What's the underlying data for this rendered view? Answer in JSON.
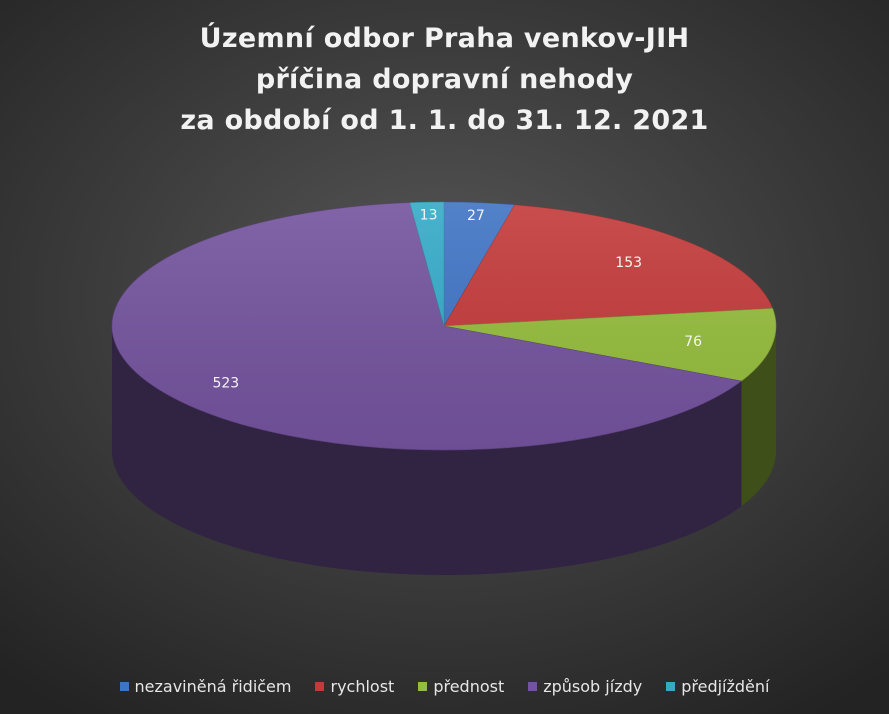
{
  "title_lines": [
    "Územní odbor Praha venkov-JIH",
    "příčina dopravní nehody",
    "za období od 1. 1. do 31. 12. 2021"
  ],
  "chart_data": {
    "type": "pie",
    "style": "3d",
    "title": "Územní odbor Praha venkov-JIH příčina dopravní nehody za období od 1. 1. do 31. 12. 2021",
    "legend_position": "bottom",
    "slices": [
      {
        "label": "nezaviněná řidičem",
        "value": 27,
        "color": "#3f74c4"
      },
      {
        "label": "rychlost",
        "value": 153,
        "color": "#c33a3a"
      },
      {
        "label": "přednost",
        "value": 76,
        "color": "#95bd3d"
      },
      {
        "label": "způsob jízdy",
        "value": 523,
        "color": "#74539e"
      },
      {
        "label": "předjíždění",
        "value": 13,
        "color": "#35aac8"
      }
    ]
  }
}
